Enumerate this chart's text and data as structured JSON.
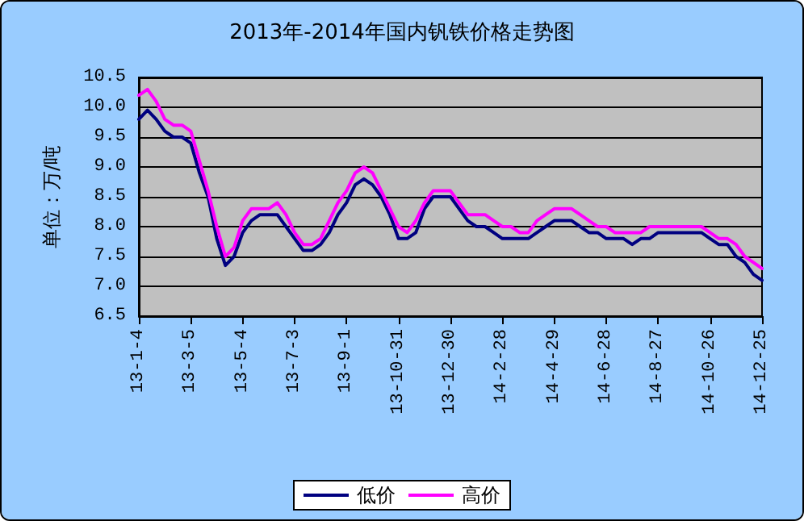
{
  "chart_data": {
    "type": "line",
    "title": "2013年-2014年国内钒铁价格走势图",
    "ylabel": "单位：万/吨",
    "categories": [
      "13-1-4",
      null,
      null,
      null,
      null,
      null,
      "13-3-5",
      null,
      null,
      null,
      null,
      null,
      "13-5-4",
      null,
      null,
      null,
      null,
      null,
      "13-7-3",
      null,
      null,
      null,
      null,
      null,
      "13-9-1",
      null,
      null,
      null,
      null,
      null,
      "13-10-31",
      null,
      null,
      null,
      null,
      null,
      "13-12-30",
      null,
      null,
      null,
      null,
      null,
      "14-2-28",
      null,
      null,
      null,
      null,
      null,
      "14-4-29",
      null,
      null,
      null,
      null,
      null,
      "14-6-28",
      null,
      null,
      null,
      null,
      null,
      "14-8-27",
      null,
      null,
      null,
      null,
      null,
      "14-10-26",
      null,
      null,
      null,
      null,
      null,
      "14-12-25"
    ],
    "series": [
      {
        "name": "低价",
        "color": "#000080",
        "values": [
          9.8,
          9.95,
          9.8,
          9.6,
          9.5,
          9.5,
          9.4,
          8.9,
          8.5,
          7.8,
          7.35,
          7.5,
          7.9,
          8.1,
          8.2,
          8.2,
          8.2,
          8.0,
          7.8,
          7.6,
          7.6,
          7.7,
          7.9,
          8.2,
          8.4,
          8.7,
          8.8,
          8.7,
          8.5,
          8.2,
          7.8,
          7.8,
          7.9,
          8.3,
          8.5,
          8.5,
          8.5,
          8.3,
          8.1,
          8.0,
          8.0,
          7.9,
          7.8,
          7.8,
          7.8,
          7.8,
          7.9,
          8.0,
          8.1,
          8.1,
          8.1,
          8.0,
          7.9,
          7.9,
          7.8,
          7.8,
          7.8,
          7.7,
          7.8,
          7.8,
          7.9,
          7.9,
          7.9,
          7.9,
          7.9,
          7.9,
          7.8,
          7.7,
          7.7,
          7.5,
          7.4,
          7.2,
          7.1
        ]
      },
      {
        "name": "高价",
        "color": "#ff00ff",
        "values": [
          10.2,
          10.3,
          10.1,
          9.8,
          9.7,
          9.7,
          9.6,
          9.1,
          8.6,
          8.0,
          7.5,
          7.65,
          8.1,
          8.3,
          8.3,
          8.3,
          8.4,
          8.2,
          7.9,
          7.7,
          7.7,
          7.8,
          8.1,
          8.4,
          8.6,
          8.9,
          9.0,
          8.9,
          8.6,
          8.3,
          8.0,
          7.9,
          8.1,
          8.4,
          8.6,
          8.6,
          8.6,
          8.4,
          8.2,
          8.2,
          8.2,
          8.1,
          8.0,
          8.0,
          7.9,
          7.9,
          8.1,
          8.2,
          8.3,
          8.3,
          8.3,
          8.2,
          8.1,
          8.0,
          8.0,
          7.9,
          7.9,
          7.9,
          7.9,
          8.0,
          8.0,
          8.0,
          8.0,
          8.0,
          8.0,
          8.0,
          7.9,
          7.8,
          7.8,
          7.7,
          7.5,
          7.4,
          7.3
        ]
      }
    ],
    "ylim": [
      6.5,
      10.5
    ],
    "yticks": [
      {
        "value": 6.5,
        "label": "6.5"
      },
      {
        "value": 7,
        "label": "7.0"
      },
      {
        "value": 7.5,
        "label": "7.5"
      },
      {
        "value": 8,
        "label": "8.0"
      },
      {
        "value": 8.5,
        "label": "8.5"
      },
      {
        "value": 9,
        "label": "9.0"
      },
      {
        "value": 9.5,
        "label": "9.5"
      },
      {
        "value": 10,
        "label": "10.0"
      },
      {
        "value": 10.5,
        "label": "10.5"
      }
    ],
    "grid": "y",
    "legend": "bottom",
    "marker": "none",
    "line_style": "solid"
  }
}
